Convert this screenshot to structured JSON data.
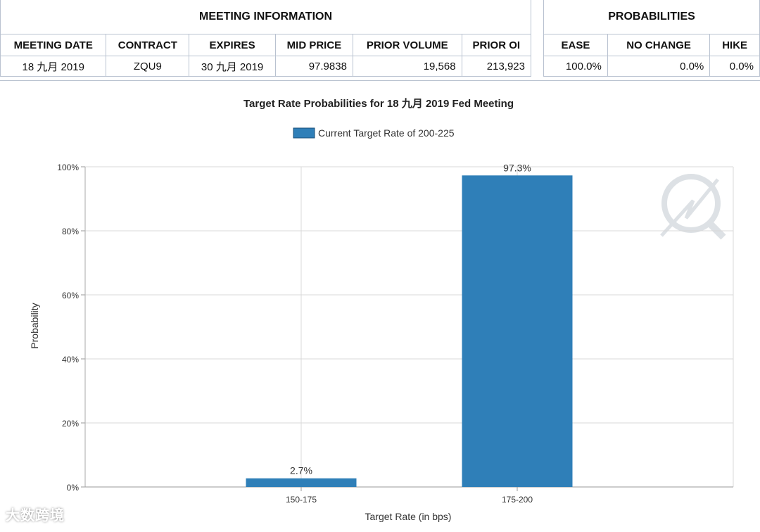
{
  "meeting_info": {
    "title": "MEETING INFORMATION",
    "headers": [
      "MEETING DATE",
      "CONTRACT",
      "EXPIRES",
      "MID PRICE",
      "PRIOR VOLUME",
      "PRIOR OI"
    ],
    "row": [
      "18 九月 2019",
      "ZQU9",
      "30 九月 2019",
      "97.9838",
      "19,568",
      "213,923"
    ]
  },
  "probabilities": {
    "title": "PROBABILITIES",
    "headers": [
      "EASE",
      "NO CHANGE",
      "HIKE"
    ],
    "row": [
      "100.0%",
      "0.0%",
      "0.0%"
    ]
  },
  "chart_data": {
    "type": "bar",
    "title": "Target Rate Probabilities for 18 九月  2019  Fed Meeting",
    "legend": "Current Target Rate of 200-225",
    "legend_position": "top-center",
    "xlabel": "Target Rate (in bps)",
    "ylabel": "Probability",
    "categories": [
      "150-175",
      "175-200"
    ],
    "values": [
      2.7,
      97.3
    ],
    "value_labels": [
      "2.7%",
      "97.3%"
    ],
    "yticks": [
      "0%",
      "20%",
      "40%",
      "60%",
      "80%",
      "100%"
    ],
    "ylim": [
      0,
      100
    ],
    "grid": true,
    "bar_color": "#2f7fb8"
  },
  "watermark": "大数跨境"
}
